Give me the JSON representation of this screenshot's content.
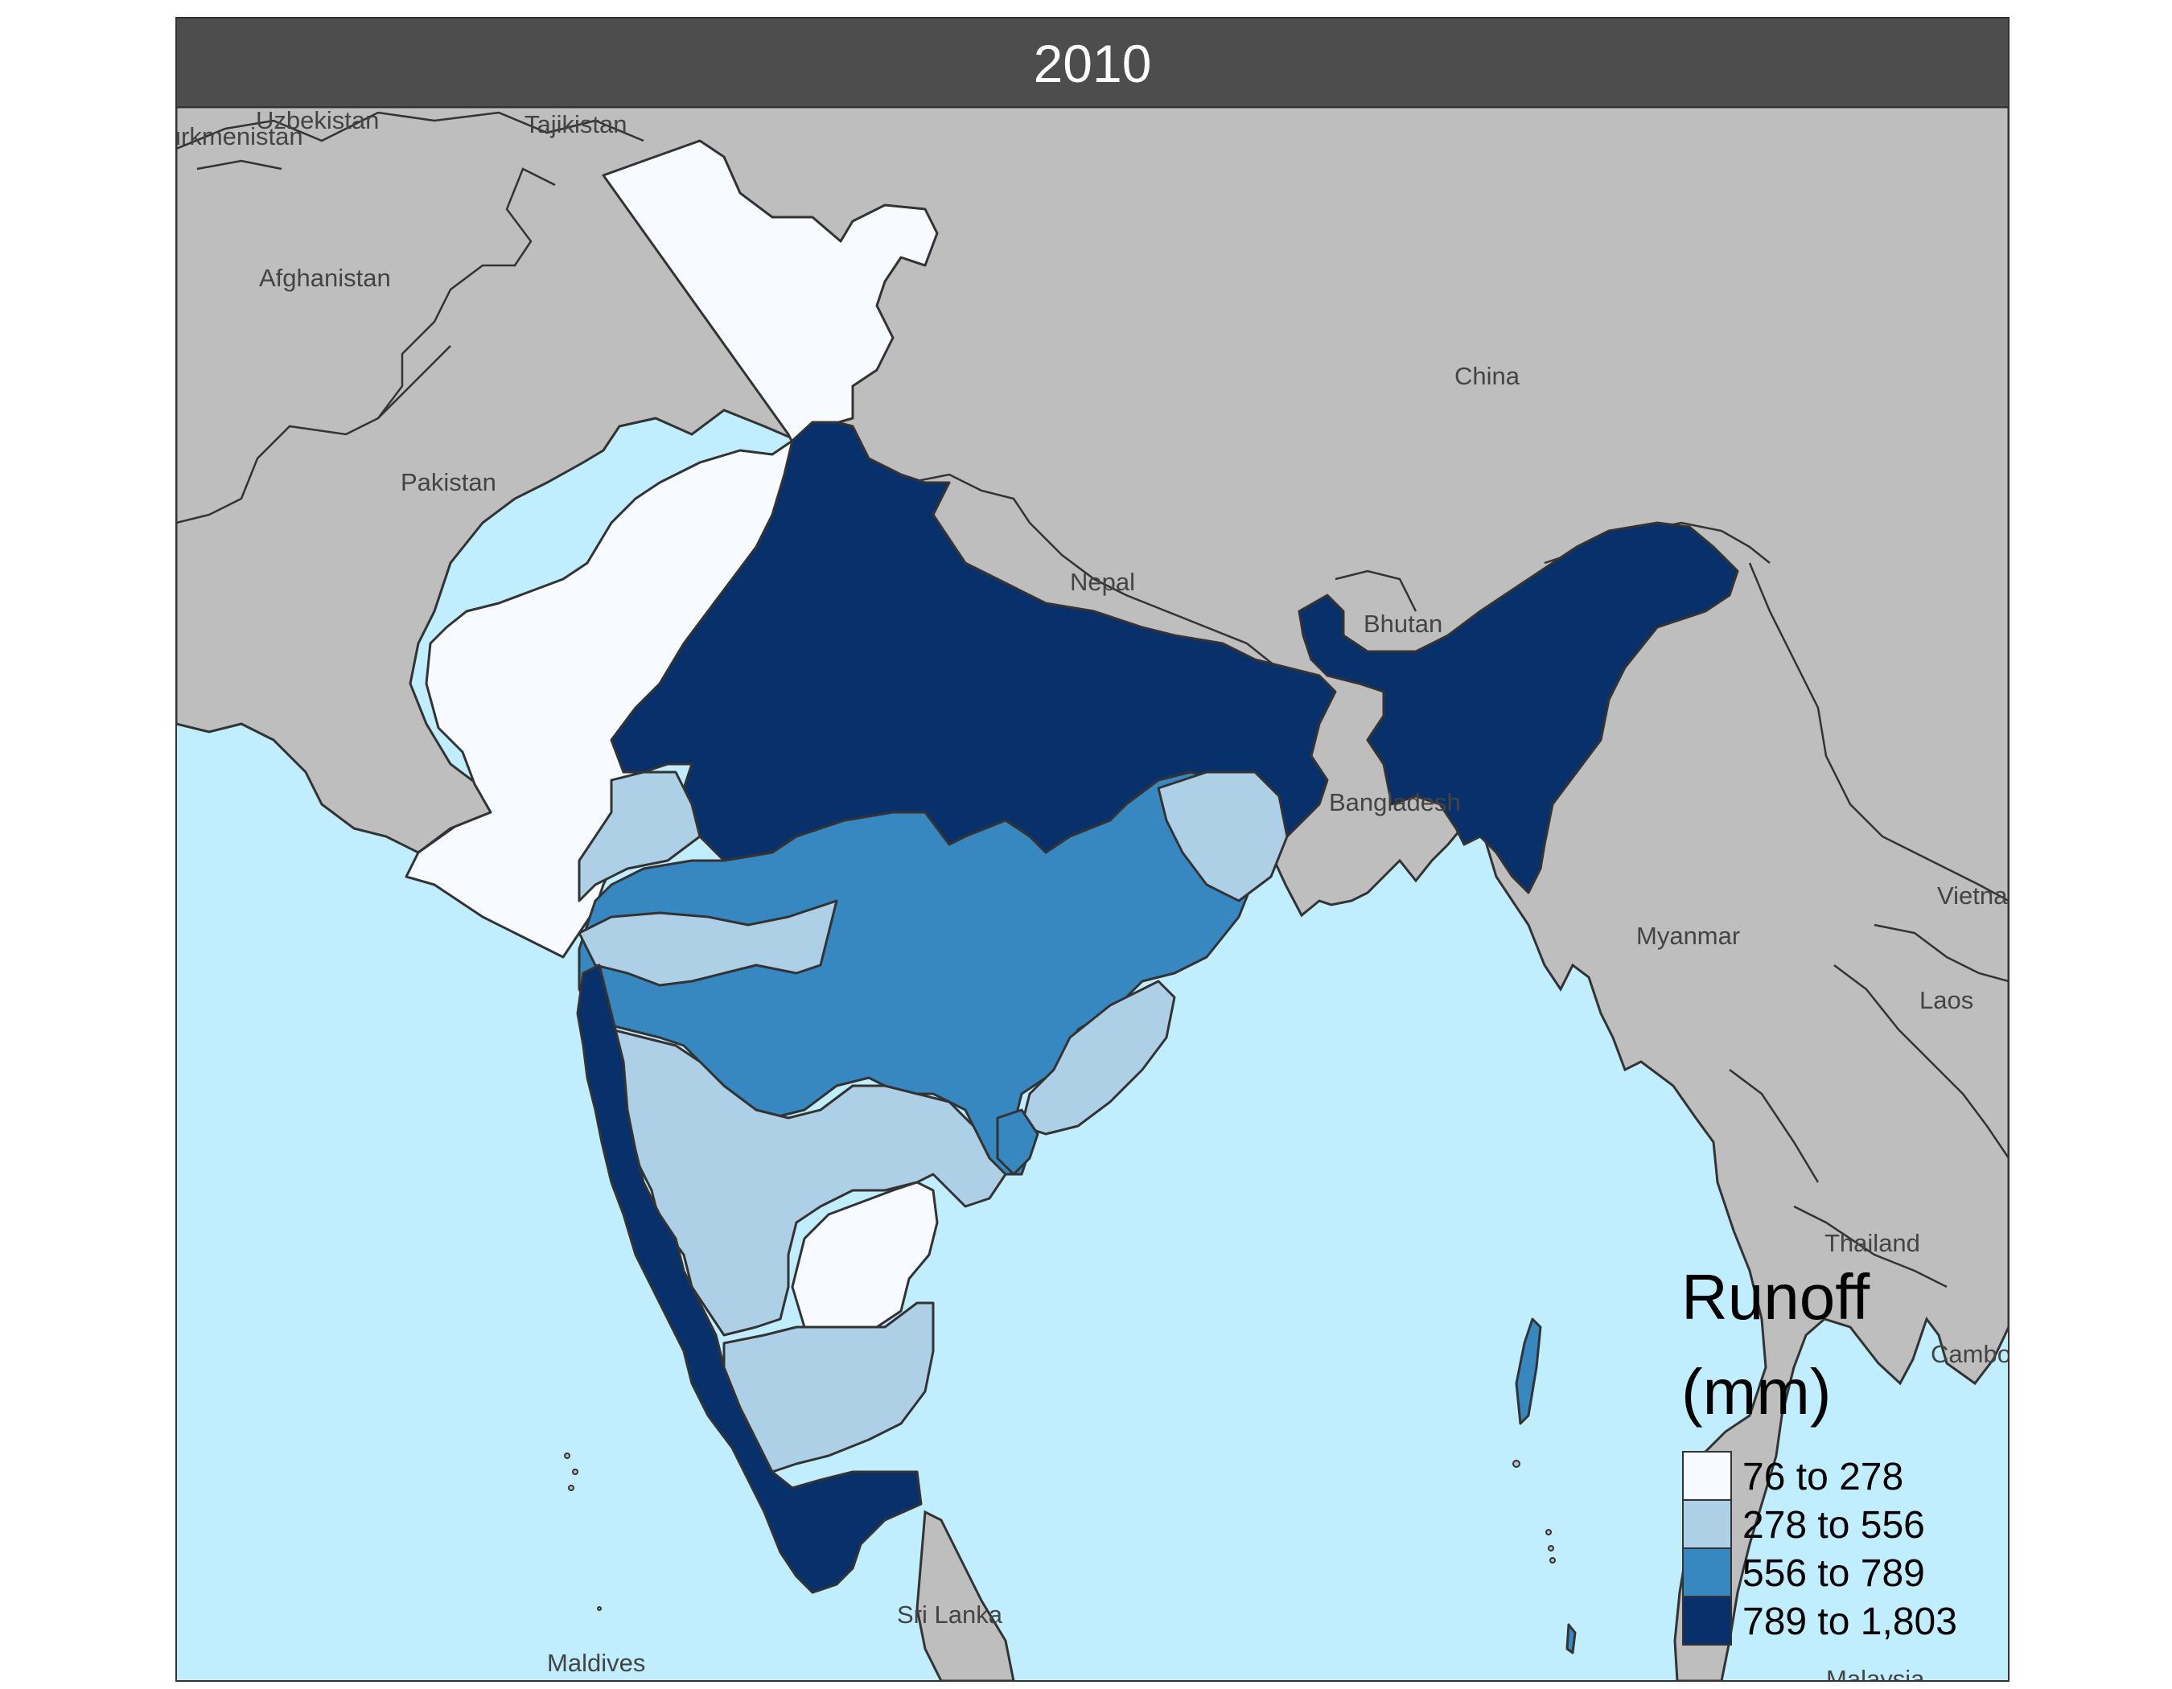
{
  "panel": {
    "title": "2010"
  },
  "map": {
    "colors": {
      "ocean": "#c0eefe",
      "land": "#bebebe",
      "border": "#333333",
      "class1": "#f7fbff",
      "class2": "#aed0e6",
      "class3": "#3787c0",
      "class4": "#08306b",
      "strip": "#4d4d4d"
    },
    "country_labels": [
      "Uzbekistan",
      "Turkmenistan",
      "Tajikistan",
      "Afghanistan",
      "Pakistan",
      "China",
      "Nepal",
      "Bhutan",
      "Bangladesh",
      "Myanmar",
      "Vietnam",
      "Laos",
      "Thailand",
      "Cambodia",
      "Sri Lanka",
      "Maldives",
      "Malaysia"
    ]
  },
  "legend": {
    "title_line1": "Runoff",
    "title_line2": "(mm)",
    "items": [
      {
        "label": "76 to 278",
        "color": "#f7fbff"
      },
      {
        "label": "278 to 556",
        "color": "#aed0e6"
      },
      {
        "label": "556 to 789",
        "color": "#3787c0"
      },
      {
        "label": "789 to 1,803",
        "color": "#08306b"
      }
    ]
  }
}
